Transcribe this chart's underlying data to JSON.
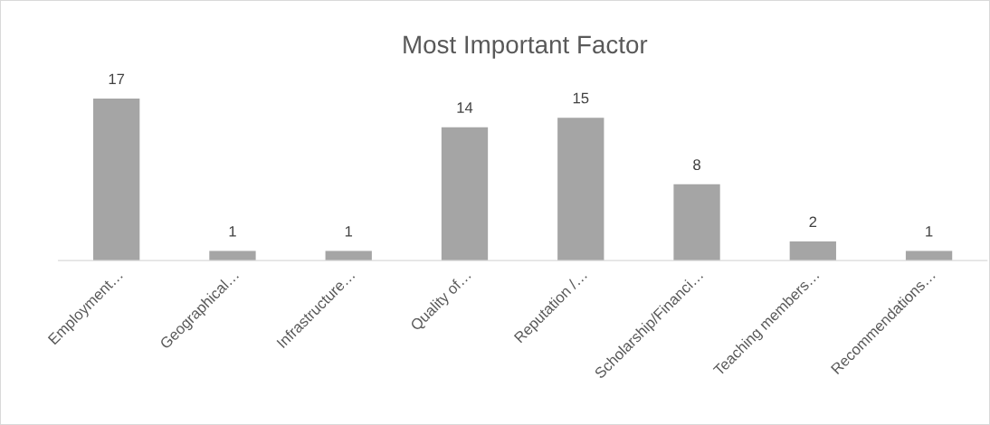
{
  "chart_data": {
    "type": "bar",
    "title": "Most Important Factor",
    "categories": [
      "Employment…",
      "Geographical…",
      "Infrastructure…",
      "Quality of…",
      "Reputation /…",
      "Scholarship/Financi…",
      "Teaching members…",
      "Recommendations…"
    ],
    "values": [
      17,
      1,
      1,
      14,
      15,
      8,
      2,
      1
    ],
    "color": "#a5a5a5",
    "data_labels": true,
    "grid": false,
    "legend": false
  }
}
